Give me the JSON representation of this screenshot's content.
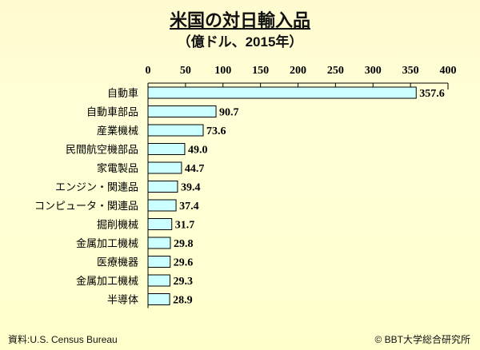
{
  "chart_data": {
    "type": "bar",
    "orientation": "horizontal",
    "title": "米国の対日輸入品",
    "subtitle": "（億ドル、2015年）",
    "categories": [
      "自動車",
      "自動車部品",
      "産業機械",
      "民間航空機部品",
      "家電製品",
      "エンジン・関連品",
      "コンピュータ・関連品",
      "掘削機械",
      "金属加工機械",
      "医療機器",
      "金属加工機械",
      "半導体"
    ],
    "values": [
      357.6,
      90.7,
      73.6,
      49.0,
      44.7,
      39.4,
      37.4,
      31.7,
      29.8,
      29.6,
      29.3,
      28.9
    ],
    "value_labels": [
      "357.6",
      "90.7",
      "73.6",
      "49.0",
      "44.7",
      "39.4",
      "37.4",
      "31.7",
      "29.8",
      "29.6",
      "29.3",
      "28.9"
    ],
    "xlim": [
      0,
      400
    ],
    "xticks": [
      "0",
      "50",
      "100",
      "150",
      "200",
      "250",
      "300",
      "350",
      "400"
    ],
    "axis_position": "top",
    "bar_color": "#ccffff"
  },
  "footer": {
    "source": "資料:U.S.  Census Bureau",
    "copyright": "© BBT大学総合研究所"
  }
}
